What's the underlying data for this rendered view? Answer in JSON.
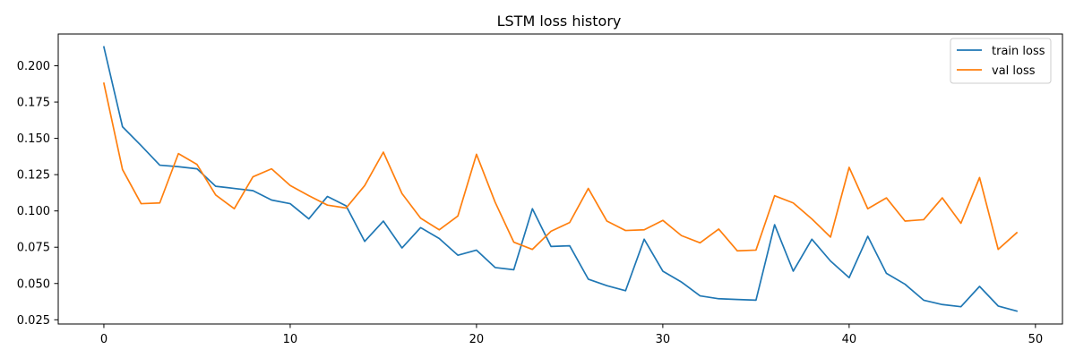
{
  "chart_data": {
    "type": "line",
    "title": "LSTM loss history",
    "xlabel": "",
    "ylabel": "",
    "xlim": [
      -2.45,
      51.45
    ],
    "ylim": [
      0.0221,
      0.2219
    ],
    "x_ticks": [
      0,
      10,
      20,
      30,
      40,
      50
    ],
    "x_tick_labels": [
      "0",
      "10",
      "20",
      "30",
      "40",
      "50"
    ],
    "y_ticks": [
      0.025,
      0.05,
      0.075,
      0.1,
      0.125,
      0.15,
      0.175,
      0.2
    ],
    "y_tick_labels": [
      "0.025",
      "0.050",
      "0.075",
      "0.100",
      "0.125",
      "0.150",
      "0.175",
      "0.200"
    ],
    "grid": false,
    "legend_position": "top-right",
    "x": [
      0,
      1,
      2,
      3,
      4,
      5,
      6,
      7,
      8,
      9,
      10,
      11,
      12,
      13,
      14,
      15,
      16,
      17,
      18,
      19,
      20,
      21,
      22,
      23,
      24,
      25,
      26,
      27,
      28,
      29,
      30,
      31,
      32,
      33,
      34,
      35,
      36,
      37,
      38,
      39,
      40,
      41,
      42,
      43,
      44,
      45,
      46,
      47,
      48,
      49
    ],
    "series": [
      {
        "name": "train loss",
        "color": "#1f77b4",
        "values": [
          0.213,
          0.158,
          0.145,
          0.1315,
          0.1305,
          0.129,
          0.117,
          0.1155,
          0.114,
          0.1075,
          0.105,
          0.0945,
          0.11,
          0.1035,
          0.079,
          0.093,
          0.0745,
          0.0885,
          0.081,
          0.0695,
          0.073,
          0.061,
          0.0595,
          0.1015,
          0.0755,
          0.076,
          0.053,
          0.0485,
          0.045,
          0.0805,
          0.0585,
          0.051,
          0.0415,
          0.0395,
          0.039,
          0.0385,
          0.0905,
          0.0585,
          0.0805,
          0.0655,
          0.054,
          0.0825,
          0.057,
          0.0495,
          0.0385,
          0.0355,
          0.034,
          0.048,
          0.0345,
          0.031
        ]
      },
      {
        "name": "val loss",
        "color": "#ff7f0e",
        "values": [
          0.188,
          0.1285,
          0.105,
          0.1055,
          0.1395,
          0.132,
          0.111,
          0.1015,
          0.1235,
          0.129,
          0.1175,
          0.1105,
          0.104,
          0.102,
          0.1175,
          0.1405,
          0.112,
          0.095,
          0.087,
          0.0965,
          0.139,
          0.106,
          0.0785,
          0.0735,
          0.086,
          0.092,
          0.1155,
          0.093,
          0.0865,
          0.087,
          0.0935,
          0.083,
          0.078,
          0.0875,
          0.0725,
          0.073,
          0.1105,
          0.1055,
          0.0945,
          0.082,
          0.13,
          0.1015,
          0.109,
          0.093,
          0.094,
          0.109,
          0.0915,
          0.123,
          0.0735,
          0.085
        ]
      }
    ]
  }
}
